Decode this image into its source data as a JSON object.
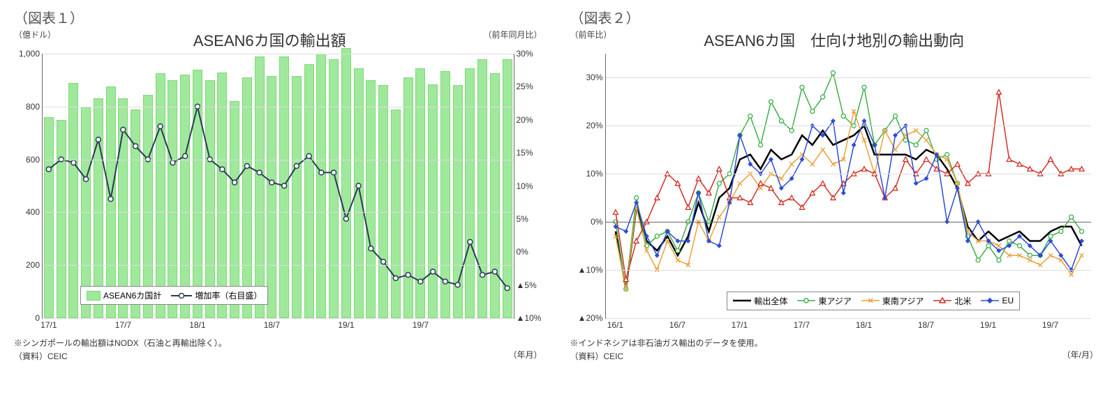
{
  "chart1": {
    "figure_label": "（図表１）",
    "title": "ASEAN6カ国の輸出額",
    "type": "bar+line",
    "left_axis_title": "（億ドル）",
    "right_axis_title": "（前年同月比）",
    "x_axis_title": "（年月）",
    "note1": "※シンガポールの輸出額はNODX（石油と再輸出除く）。",
    "source": "（資料）CEIC",
    "left_ylim": [
      0,
      1000
    ],
    "left_ytick_step": 200,
    "right_ylim": [
      -10,
      30
    ],
    "right_ytick_step": 5,
    "right_yticks_labels": [
      "▲10%",
      "▲5%",
      "0%",
      "5%",
      "10%",
      "15%",
      "20%",
      "25%",
      "30%"
    ],
    "background_color": "#ffffff",
    "grid_color": "#dddddd",
    "bar_color": "#a0e89c",
    "bar_border_color": "#7dd878",
    "line_color": "#2b3a55",
    "line_marker": "circle-open",
    "line_width": 2,
    "x_start": "17/1",
    "x_labels_shown": [
      "17/1",
      "17/7",
      "18/1",
      "18/7",
      "19/1",
      "19/7"
    ],
    "bars": [
      760,
      750,
      890,
      800,
      830,
      875,
      830,
      790,
      845,
      925,
      900,
      920,
      940,
      900,
      930,
      820,
      910,
      990,
      915,
      990,
      915,
      960,
      1000,
      980,
      1020,
      945,
      900,
      880,
      790,
      910,
      945,
      885,
      935,
      880,
      945,
      980,
      925,
      980
    ],
    "line_values_pct": [
      12.5,
      14.0,
      13.5,
      11.0,
      17.0,
      8.0,
      18.5,
      16.0,
      14.0,
      19.0,
      13.5,
      14.5,
      22.0,
      14.0,
      12.5,
      10.5,
      13.0,
      12.0,
      10.5,
      10.0,
      13.0,
      14.5,
      12.0,
      12.0,
      5.0,
      10.0,
      0.5,
      -1.5,
      -4.0,
      -3.5,
      -4.5,
      -3.0,
      -4.5,
      -5.0,
      1.5,
      -3.5,
      -3.0,
      -5.5
    ],
    "legend": {
      "bar_label": "ASEAN6カ国計",
      "line_label": "増加率（右目盛）"
    }
  },
  "chart2": {
    "figure_label": "（図表２）",
    "title": "ASEAN6カ国　仕向け地別の輸出動向",
    "type": "multi-line",
    "left_axis_title": "（前年比）",
    "x_axis_title": "（年/月）",
    "note1": "※インドネシアは非石油ガス輸出のデータを使用。",
    "source": "（資料）CEIC",
    "ylim": [
      -20,
      35
    ],
    "yticks": [
      -20,
      -10,
      0,
      10,
      20,
      30
    ],
    "ytick_labels": [
      "▲20%",
      "▲10%",
      "0%",
      "10%",
      "20%",
      "30%"
    ],
    "grid_color": "#dddddd",
    "background_color": "#ffffff",
    "x_start": "16/1",
    "x_labels_shown": [
      "16/1",
      "16/7",
      "17/1",
      "17/7",
      "18/1",
      "18/7",
      "19/1",
      "19/7"
    ],
    "n_points": 46,
    "series": [
      {
        "name": "輸出全体",
        "color": "#000000",
        "width": 2.5,
        "marker": "none",
        "dash": "",
        "values": [
          -2,
          -14,
          3,
          -4,
          -6,
          -3,
          -7,
          -3,
          4,
          -2,
          5,
          7,
          13,
          14,
          11,
          15,
          13,
          14,
          18,
          16,
          19,
          16,
          17,
          18,
          20,
          14,
          14,
          14,
          14,
          13,
          15,
          14,
          11,
          7,
          -1,
          -4,
          -2,
          -4,
          -3,
          -2,
          -4,
          -4,
          -2,
          -1,
          -1,
          -5
        ]
      },
      {
        "name": "東アジア",
        "color": "#3fae4a",
        "width": 1.5,
        "marker": "circle-open",
        "dash": "",
        "values": [
          0,
          -14,
          5,
          -5,
          -3,
          -2,
          -6,
          0,
          6,
          0,
          8,
          10,
          18,
          22,
          16,
          25,
          21,
          19,
          28,
          23,
          26,
          31,
          22,
          20,
          28,
          16,
          19,
          22,
          17,
          16,
          19,
          13,
          14,
          8,
          -3,
          -8,
          -5,
          -8,
          -4,
          -5,
          -7,
          -7,
          -3,
          -2,
          1,
          -2
        ]
      },
      {
        "name": "東南アジア",
        "color": "#e8a23a",
        "width": 1.5,
        "marker": "x",
        "dash": "",
        "values": [
          -3,
          -14,
          3,
          -6,
          -10,
          -4,
          -8,
          -9,
          0,
          -4,
          1,
          4,
          8,
          10,
          7,
          10,
          9,
          12,
          14,
          12,
          15,
          12,
          13,
          23,
          17,
          10,
          19,
          15,
          18,
          19,
          17,
          14,
          13,
          8,
          -2,
          -4,
          -4,
          -5,
          -7,
          -7,
          -8,
          -9,
          -7,
          -8,
          -11,
          -7
        ]
      },
      {
        "name": "北米",
        "color": "#d22f27",
        "width": 1.5,
        "marker": "triangle-open",
        "dash": "",
        "values": [
          2,
          -12,
          -4,
          0,
          5,
          10,
          8,
          3,
          9,
          6,
          11,
          5,
          5,
          4,
          8,
          7,
          4,
          5,
          3,
          6,
          8,
          5,
          8,
          10,
          11,
          10,
          5,
          7,
          13,
          10,
          13,
          11,
          10,
          12,
          8,
          10,
          10,
          27,
          13,
          12,
          11,
          10,
          13,
          10,
          11,
          11
        ]
      },
      {
        "name": "EU",
        "color": "#2e4bd6",
        "width": 1.5,
        "marker": "diamond",
        "dash": "",
        "values": [
          -1,
          -2,
          4,
          -3,
          -7,
          -2,
          -4,
          -4,
          6,
          -4,
          -5,
          4,
          18,
          12,
          10,
          13,
          7,
          9,
          13,
          20,
          18,
          21,
          6,
          16,
          21,
          16,
          5,
          18,
          20,
          8,
          9,
          14,
          0,
          7,
          -4,
          0,
          -4,
          -6,
          -5,
          -3,
          -5,
          -7,
          -4,
          -7,
          -10,
          -4
        ]
      }
    ],
    "legend_labels": {
      "all": "輸出全体",
      "east_asia": "東アジア",
      "se_asia": "東南アジア",
      "north_america": "北米",
      "eu": "EU"
    }
  }
}
